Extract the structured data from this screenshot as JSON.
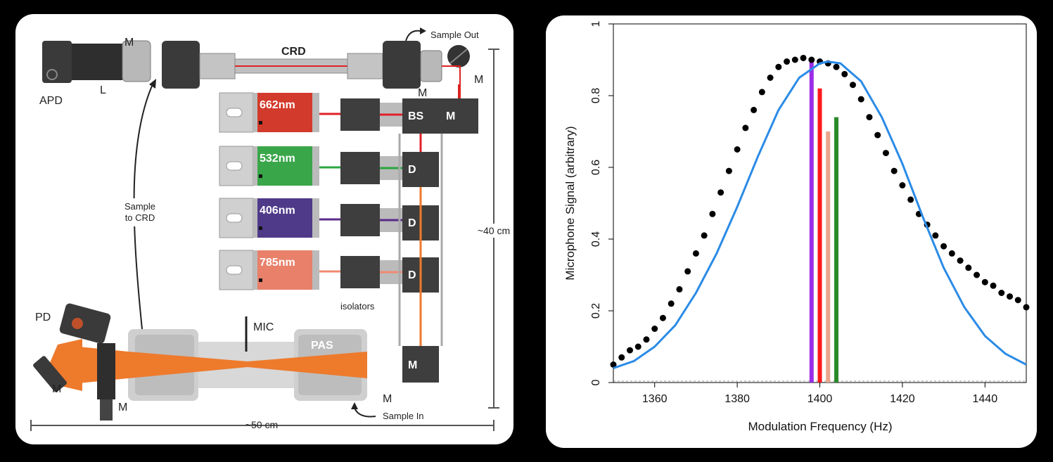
{
  "diagram": {
    "labels": {
      "apd": "APD",
      "m_top": "M",
      "l": "L",
      "crd": "CRD",
      "sample_out": "Sample Out",
      "m_mirror_right": "M",
      "m_crd_right": "M",
      "bs": "BS",
      "m_box": "M",
      "d1": "D",
      "d2": "D",
      "d3": "D",
      "isolators": "isolators",
      "sample_to_crd_1": "Sample",
      "sample_to_crd_2": "to CRD",
      "height": "~40 cm",
      "width": "~50 cm",
      "pd": "PD",
      "mic": "MIC",
      "pas": "PAS",
      "m_pas_right": "M",
      "m_pas_bottom": "M",
      "m_left_mirror": "M",
      "m_left_bottom": "M",
      "sample_in": "Sample In"
    },
    "lasers": [
      {
        "label": "662nm",
        "color": "#d23a2b",
        "beam": "#e0202a"
      },
      {
        "label": "532nm",
        "color": "#3aa64a",
        "beam": "#2aa640"
      },
      {
        "label": "406nm",
        "color": "#4f3a8a",
        "beam": "#5a2a8a"
      },
      {
        "label": "785nm",
        "color": "#e8806a",
        "beam": "#f08a70"
      }
    ],
    "colors": {
      "pas_beam": "#ee7a2c",
      "body_gray": "#bdbdbd",
      "dark_part": "#3a3a3a"
    }
  },
  "chart_data": {
    "type": "line",
    "xlabel": "Modulation Frequency (Hz)",
    "ylabel": "Microphone Signal (arbitrary)",
    "xlim": [
      1350,
      1450
    ],
    "ylim": [
      0,
      1
    ],
    "xticks": [
      "1360",
      "1380",
      "1400",
      "1420",
      "1440"
    ],
    "xtick_values": [
      1360,
      1380,
      1400,
      1420,
      1440
    ],
    "yticks": [
      "0",
      "0.2",
      "0.4",
      "0.6",
      "0.8",
      "1"
    ],
    "ytick_values": [
      0,
      0.2,
      0.4,
      0.6,
      0.8,
      1
    ],
    "series": [
      {
        "marker": "points",
        "color": "#000000",
        "x": [
          1350,
          1352,
          1354,
          1356,
          1358,
          1360,
          1362,
          1364,
          1366,
          1368,
          1370,
          1372,
          1374,
          1376,
          1378,
          1380,
          1382,
          1384,
          1386,
          1388,
          1390,
          1392,
          1394,
          1396,
          1398,
          1400,
          1402,
          1404,
          1406,
          1408,
          1410,
          1412,
          1414,
          1416,
          1418,
          1420,
          1422,
          1424,
          1426,
          1428,
          1430,
          1432,
          1434,
          1436,
          1438,
          1440,
          1442,
          1444,
          1446,
          1448,
          1450
        ],
        "y": [
          0.05,
          0.07,
          0.09,
          0.1,
          0.12,
          0.15,
          0.18,
          0.22,
          0.26,
          0.31,
          0.36,
          0.41,
          0.47,
          0.53,
          0.59,
          0.65,
          0.71,
          0.76,
          0.81,
          0.85,
          0.88,
          0.895,
          0.9,
          0.905,
          0.9,
          0.895,
          0.89,
          0.88,
          0.86,
          0.83,
          0.79,
          0.74,
          0.69,
          0.64,
          0.59,
          0.55,
          0.51,
          0.47,
          0.44,
          0.41,
          0.38,
          0.36,
          0.34,
          0.32,
          0.3,
          0.28,
          0.27,
          0.25,
          0.24,
          0.23,
          0.21
        ]
      },
      {
        "marker": "line",
        "color": "#2b8be6",
        "x": [
          1350,
          1355,
          1360,
          1365,
          1370,
          1375,
          1380,
          1385,
          1390,
          1395,
          1400,
          1402,
          1405,
          1410,
          1415,
          1420,
          1425,
          1430,
          1435,
          1440,
          1445,
          1450
        ],
        "y": [
          0.04,
          0.06,
          0.1,
          0.16,
          0.25,
          0.36,
          0.49,
          0.63,
          0.76,
          0.85,
          0.89,
          0.895,
          0.89,
          0.84,
          0.74,
          0.61,
          0.46,
          0.32,
          0.21,
          0.13,
          0.08,
          0.05
        ]
      }
    ],
    "bars": [
      {
        "x": 1398,
        "y": 0.9,
        "color": "#9b2de6"
      },
      {
        "x": 1400,
        "y": 0.82,
        "color": "#ff1a1a"
      },
      {
        "x": 1402,
        "y": 0.7,
        "color": "#eaa58c"
      },
      {
        "x": 1404,
        "y": 0.74,
        "color": "#2a8a2a"
      }
    ]
  }
}
